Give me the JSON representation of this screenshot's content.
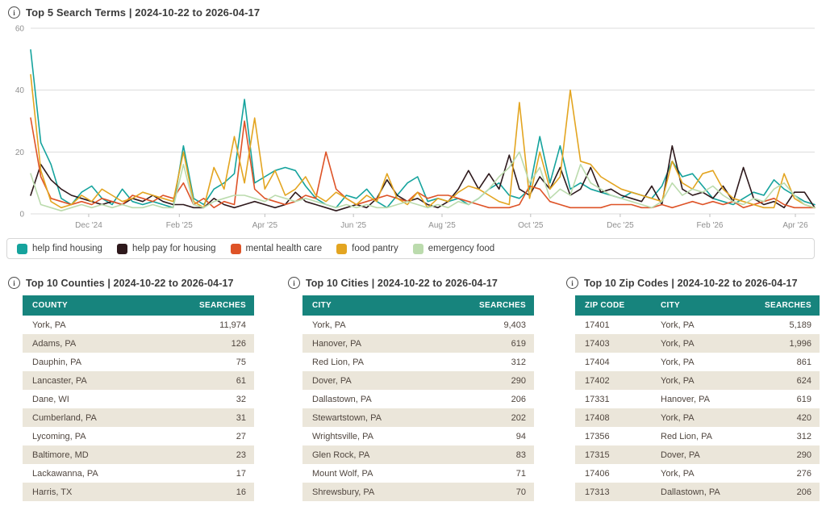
{
  "icons": {
    "info": "i"
  },
  "colors": {
    "table_header": "#17847D",
    "row_alt": "#EBE6DA",
    "grid_line": "#dcdcdc",
    "axis_text": "#8f8f8f"
  },
  "chart": {
    "title": "Top 5 Search Terms | 2024-10-22 to 2026-04-17"
  },
  "chart_data": {
    "type": "line",
    "title": "Top 5 Search Terms | 2024-10-22 to 2026-04-17",
    "x_unit": "weeks from 2024-10-22 to 2026-04-17",
    "weeks": 78,
    "ylim": [
      0,
      60
    ],
    "yticks": [
      0,
      20,
      40,
      60
    ],
    "grid": true,
    "legend_position": "bottom",
    "xticks": [
      {
        "label": "Dec '24",
        "week": 5.7
      },
      {
        "label": "Feb '25",
        "week": 14.6
      },
      {
        "label": "Apr '25",
        "week": 23.0
      },
      {
        "label": "Jun '25",
        "week": 31.7
      },
      {
        "label": "Aug '25",
        "week": 40.4
      },
      {
        "label": "Oct '25",
        "week": 49.1
      },
      {
        "label": "Dec '25",
        "week": 57.9
      },
      {
        "label": "Feb '26",
        "week": 66.7
      },
      {
        "label": "Apr '26",
        "week": 75.1
      }
    ],
    "series": [
      {
        "name": "help find housing",
        "color": "#15A39D",
        "values": [
          53,
          23,
          16,
          5,
          3,
          7,
          9,
          5,
          3,
          8,
          4,
          3,
          4,
          3,
          2,
          22,
          5,
          3,
          8,
          10,
          13,
          37,
          10,
          12,
          14,
          15,
          14,
          9,
          5,
          3,
          2,
          6,
          5,
          8,
          4,
          2,
          6,
          10,
          12,
          4,
          5,
          4,
          5,
          3,
          5,
          8,
          10,
          6,
          5,
          8,
          25,
          10,
          22,
          8,
          10,
          8,
          7,
          6,
          5,
          7,
          6,
          5,
          9,
          17,
          12,
          13,
          9,
          5,
          4,
          3,
          5,
          7,
          6,
          11,
          8,
          6,
          4,
          3
        ]
      },
      {
        "name": "help pay for housing",
        "color": "#2E191C",
        "values": [
          6,
          16,
          11,
          8,
          6,
          5,
          4,
          3,
          4,
          3,
          5,
          4,
          6,
          4,
          3,
          3,
          2,
          2,
          5,
          3,
          2,
          3,
          4,
          3,
          2,
          3,
          7,
          4,
          3,
          2,
          1,
          2,
          3,
          2,
          5,
          11,
          6,
          4,
          5,
          3,
          2,
          4,
          8,
          14,
          8,
          13,
          8,
          19,
          8,
          6,
          12,
          8,
          15,
          6,
          8,
          15,
          7,
          8,
          6,
          5,
          4,
          9,
          3,
          22,
          8,
          6,
          7,
          5,
          9,
          4,
          15,
          5,
          3,
          4,
          2,
          7,
          7,
          2
        ]
      },
      {
        "name": "mental health care",
        "color": "#DE5327",
        "values": [
          31,
          12,
          5,
          4,
          3,
          4,
          3,
          5,
          4,
          3,
          6,
          5,
          4,
          6,
          5,
          10,
          3,
          5,
          2,
          4,
          3,
          30,
          8,
          5,
          4,
          3,
          4,
          6,
          5,
          20,
          8,
          5,
          3,
          4,
          5,
          6,
          5,
          4,
          7,
          5,
          6,
          6,
          5,
          4,
          3,
          2,
          2,
          2,
          3,
          9,
          8,
          4,
          3,
          2,
          2,
          2,
          2,
          3,
          3,
          3,
          2,
          2,
          3,
          2,
          3,
          4,
          3,
          4,
          3,
          4,
          2,
          3,
          4,
          5,
          3,
          2,
          2,
          2
        ]
      },
      {
        "name": "food pantry",
        "color": "#E3A521",
        "values": [
          45,
          14,
          4,
          2,
          3,
          6,
          4,
          8,
          6,
          4,
          5,
          7,
          6,
          5,
          4,
          20,
          4,
          2,
          15,
          8,
          25,
          10,
          31,
          8,
          14,
          6,
          8,
          12,
          6,
          4,
          7,
          5,
          3,
          6,
          4,
          13,
          5,
          3,
          7,
          2,
          5,
          4,
          7,
          9,
          8,
          6,
          4,
          3,
          36,
          5,
          20,
          8,
          12,
          40,
          17,
          16,
          12,
          10,
          8,
          7,
          6,
          5,
          4,
          17,
          10,
          8,
          13,
          14,
          8,
          5,
          4,
          3,
          2,
          2,
          13,
          5,
          3,
          2
        ]
      },
      {
        "name": "emergency food",
        "color": "#BBDBAD",
        "values": [
          13,
          3,
          2,
          1,
          2,
          3,
          2,
          3,
          2,
          3,
          2,
          2,
          3,
          2,
          2,
          16,
          3,
          2,
          4,
          5,
          6,
          6,
          5,
          4,
          6,
          5,
          4,
          5,
          4,
          3,
          2,
          3,
          2,
          3,
          2,
          2,
          3,
          4,
          3,
          2,
          3,
          2,
          4,
          3,
          5,
          8,
          12,
          15,
          20,
          10,
          15,
          5,
          8,
          6,
          16,
          10,
          8,
          6,
          5,
          4,
          3,
          2,
          4,
          10,
          6,
          8,
          7,
          9,
          6,
          4,
          3,
          5,
          4,
          8,
          10,
          6,
          3,
          2
        ]
      }
    ]
  },
  "tables": [
    {
      "title": "Top 10 Counties | 2024-10-22 to 2026-04-17",
      "columns": [
        "COUNTY",
        "SEARCHES"
      ],
      "rows": [
        [
          "York, PA",
          "11,974"
        ],
        [
          "Adams, PA",
          "126"
        ],
        [
          "Dauphin, PA",
          "75"
        ],
        [
          "Lancaster, PA",
          "61"
        ],
        [
          "Dane, WI",
          "32"
        ],
        [
          "Cumberland, PA",
          "31"
        ],
        [
          "Lycoming, PA",
          "27"
        ],
        [
          "Baltimore, MD",
          "23"
        ],
        [
          "Lackawanna, PA",
          "17"
        ],
        [
          "Harris, TX",
          "16"
        ]
      ]
    },
    {
      "title": "Top 10 Cities | 2024-10-22 to 2026-04-17",
      "columns": [
        "CITY",
        "SEARCHES"
      ],
      "rows": [
        [
          "York, PA",
          "9,403"
        ],
        [
          "Hanover, PA",
          "619"
        ],
        [
          "Red Lion, PA",
          "312"
        ],
        [
          "Dover, PA",
          "290"
        ],
        [
          "Dallastown, PA",
          "206"
        ],
        [
          "Stewartstown, PA",
          "202"
        ],
        [
          "Wrightsville, PA",
          "94"
        ],
        [
          "Glen Rock, PA",
          "83"
        ],
        [
          "Mount Wolf, PA",
          "71"
        ],
        [
          "Shrewsbury, PA",
          "70"
        ]
      ]
    },
    {
      "title": "Top 10 Zip Codes | 2024-10-22 to 2026-04-17",
      "columns": [
        "ZIP CODE",
        "CITY",
        "SEARCHES"
      ],
      "rows": [
        [
          "17401",
          "York, PA",
          "5,189"
        ],
        [
          "17403",
          "York, PA",
          "1,996"
        ],
        [
          "17404",
          "York, PA",
          "861"
        ],
        [
          "17402",
          "York, PA",
          "624"
        ],
        [
          "17331",
          "Hanover, PA",
          "619"
        ],
        [
          "17408",
          "York, PA",
          "420"
        ],
        [
          "17356",
          "Red Lion, PA",
          "312"
        ],
        [
          "17315",
          "Dover, PA",
          "290"
        ],
        [
          "17406",
          "York, PA",
          "276"
        ],
        [
          "17313",
          "Dallastown, PA",
          "206"
        ]
      ]
    }
  ]
}
